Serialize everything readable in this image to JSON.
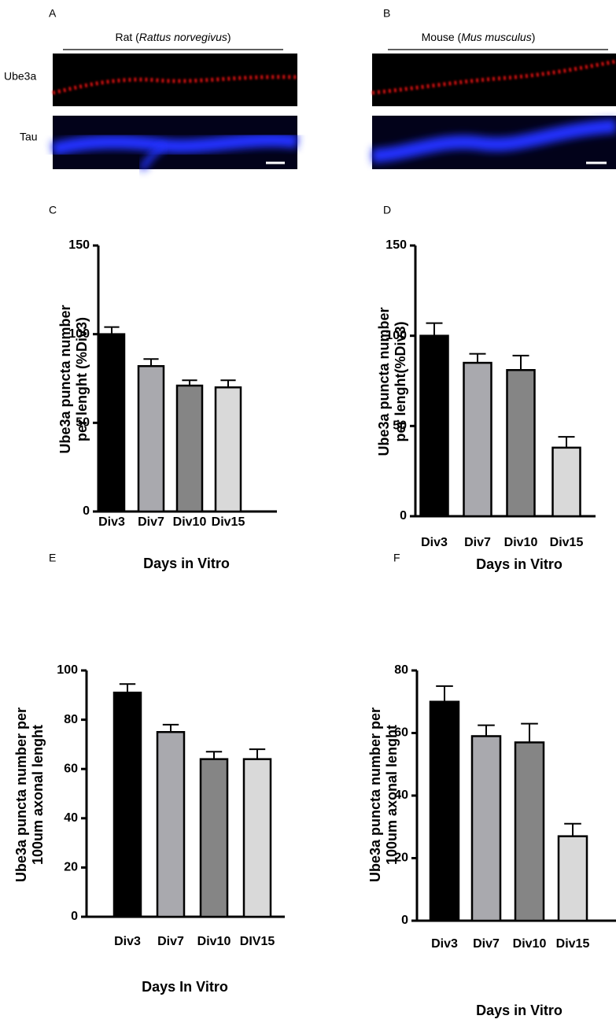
{
  "figure": {
    "panels": [
      {
        "letter": "A",
        "title": {
          "prefix": "Rat (",
          "species": "Rattus norvegivus",
          "suffix": ")"
        }
      },
      {
        "letter": "B",
        "title": {
          "prefix": "Mouse (",
          "species": "Mus musculus",
          "suffix": ")"
        }
      }
    ],
    "row_labels": [
      "Ube3a",
      "Tau"
    ]
  },
  "chart_data": [
    {
      "type": "bar",
      "panel": "C",
      "ylabel": [
        "Ube3a puncta number",
        "per lenght (%Div3)"
      ],
      "xlabel": "Days in Vitro",
      "categories": [
        "Div3",
        "Div7",
        "Div10",
        "Div15"
      ],
      "values": [
        100,
        82,
        71,
        70
      ],
      "errors": [
        4,
        4,
        3,
        4
      ],
      "colors": [
        "#000000",
        "#a9a9ae",
        "#858585",
        "#d9d9d9"
      ],
      "ylim": [
        0,
        150
      ],
      "yticks": [
        0,
        50,
        100,
        150
      ]
    },
    {
      "type": "bar",
      "panel": "D",
      "ylabel": [
        "Ube3a puncta number",
        "per lenght(%Div3)"
      ],
      "xlabel": "Days in Vitro",
      "categories": [
        "Div3",
        "Div7",
        "Div10",
        "Div15"
      ],
      "values": [
        100,
        85,
        81,
        38
      ],
      "errors": [
        7,
        5,
        8,
        6
      ],
      "colors": [
        "#000000",
        "#a9a9ae",
        "#858585",
        "#d9d9d9"
      ],
      "ylim": [
        0,
        150
      ],
      "yticks": [
        0,
        50,
        100,
        150
      ]
    },
    {
      "type": "bar",
      "panel": "E",
      "ylabel": [
        "Ube3a puncta number per",
        "100um axonal lenght"
      ],
      "xlabel": "Days In Vitro",
      "categories": [
        "Div3",
        "Div7",
        "Div10",
        "DIV15"
      ],
      "values": [
        91,
        75,
        64,
        64
      ],
      "errors": [
        3.5,
        3,
        3,
        4
      ],
      "colors": [
        "#000000",
        "#a9a9ae",
        "#858585",
        "#d9d9d9"
      ],
      "ylim": [
        0,
        100
      ],
      "yticks": [
        0,
        20,
        40,
        60,
        80,
        100
      ]
    },
    {
      "type": "bar",
      "panel": "F",
      "ylabel": [
        "Ube3a puncta number per",
        "100um axonal lenght"
      ],
      "xlabel": "Days in Vitro",
      "categories": [
        "Div3",
        "Div7",
        "Div10",
        "Div15"
      ],
      "values": [
        70,
        59,
        57,
        27
      ],
      "errors": [
        5,
        3.5,
        6,
        4
      ],
      "colors": [
        "#000000",
        "#a9a9ae",
        "#858585",
        "#d9d9d9"
      ],
      "ylim": [
        0,
        80
      ],
      "yticks": [
        0,
        20,
        40,
        60,
        80
      ]
    }
  ]
}
